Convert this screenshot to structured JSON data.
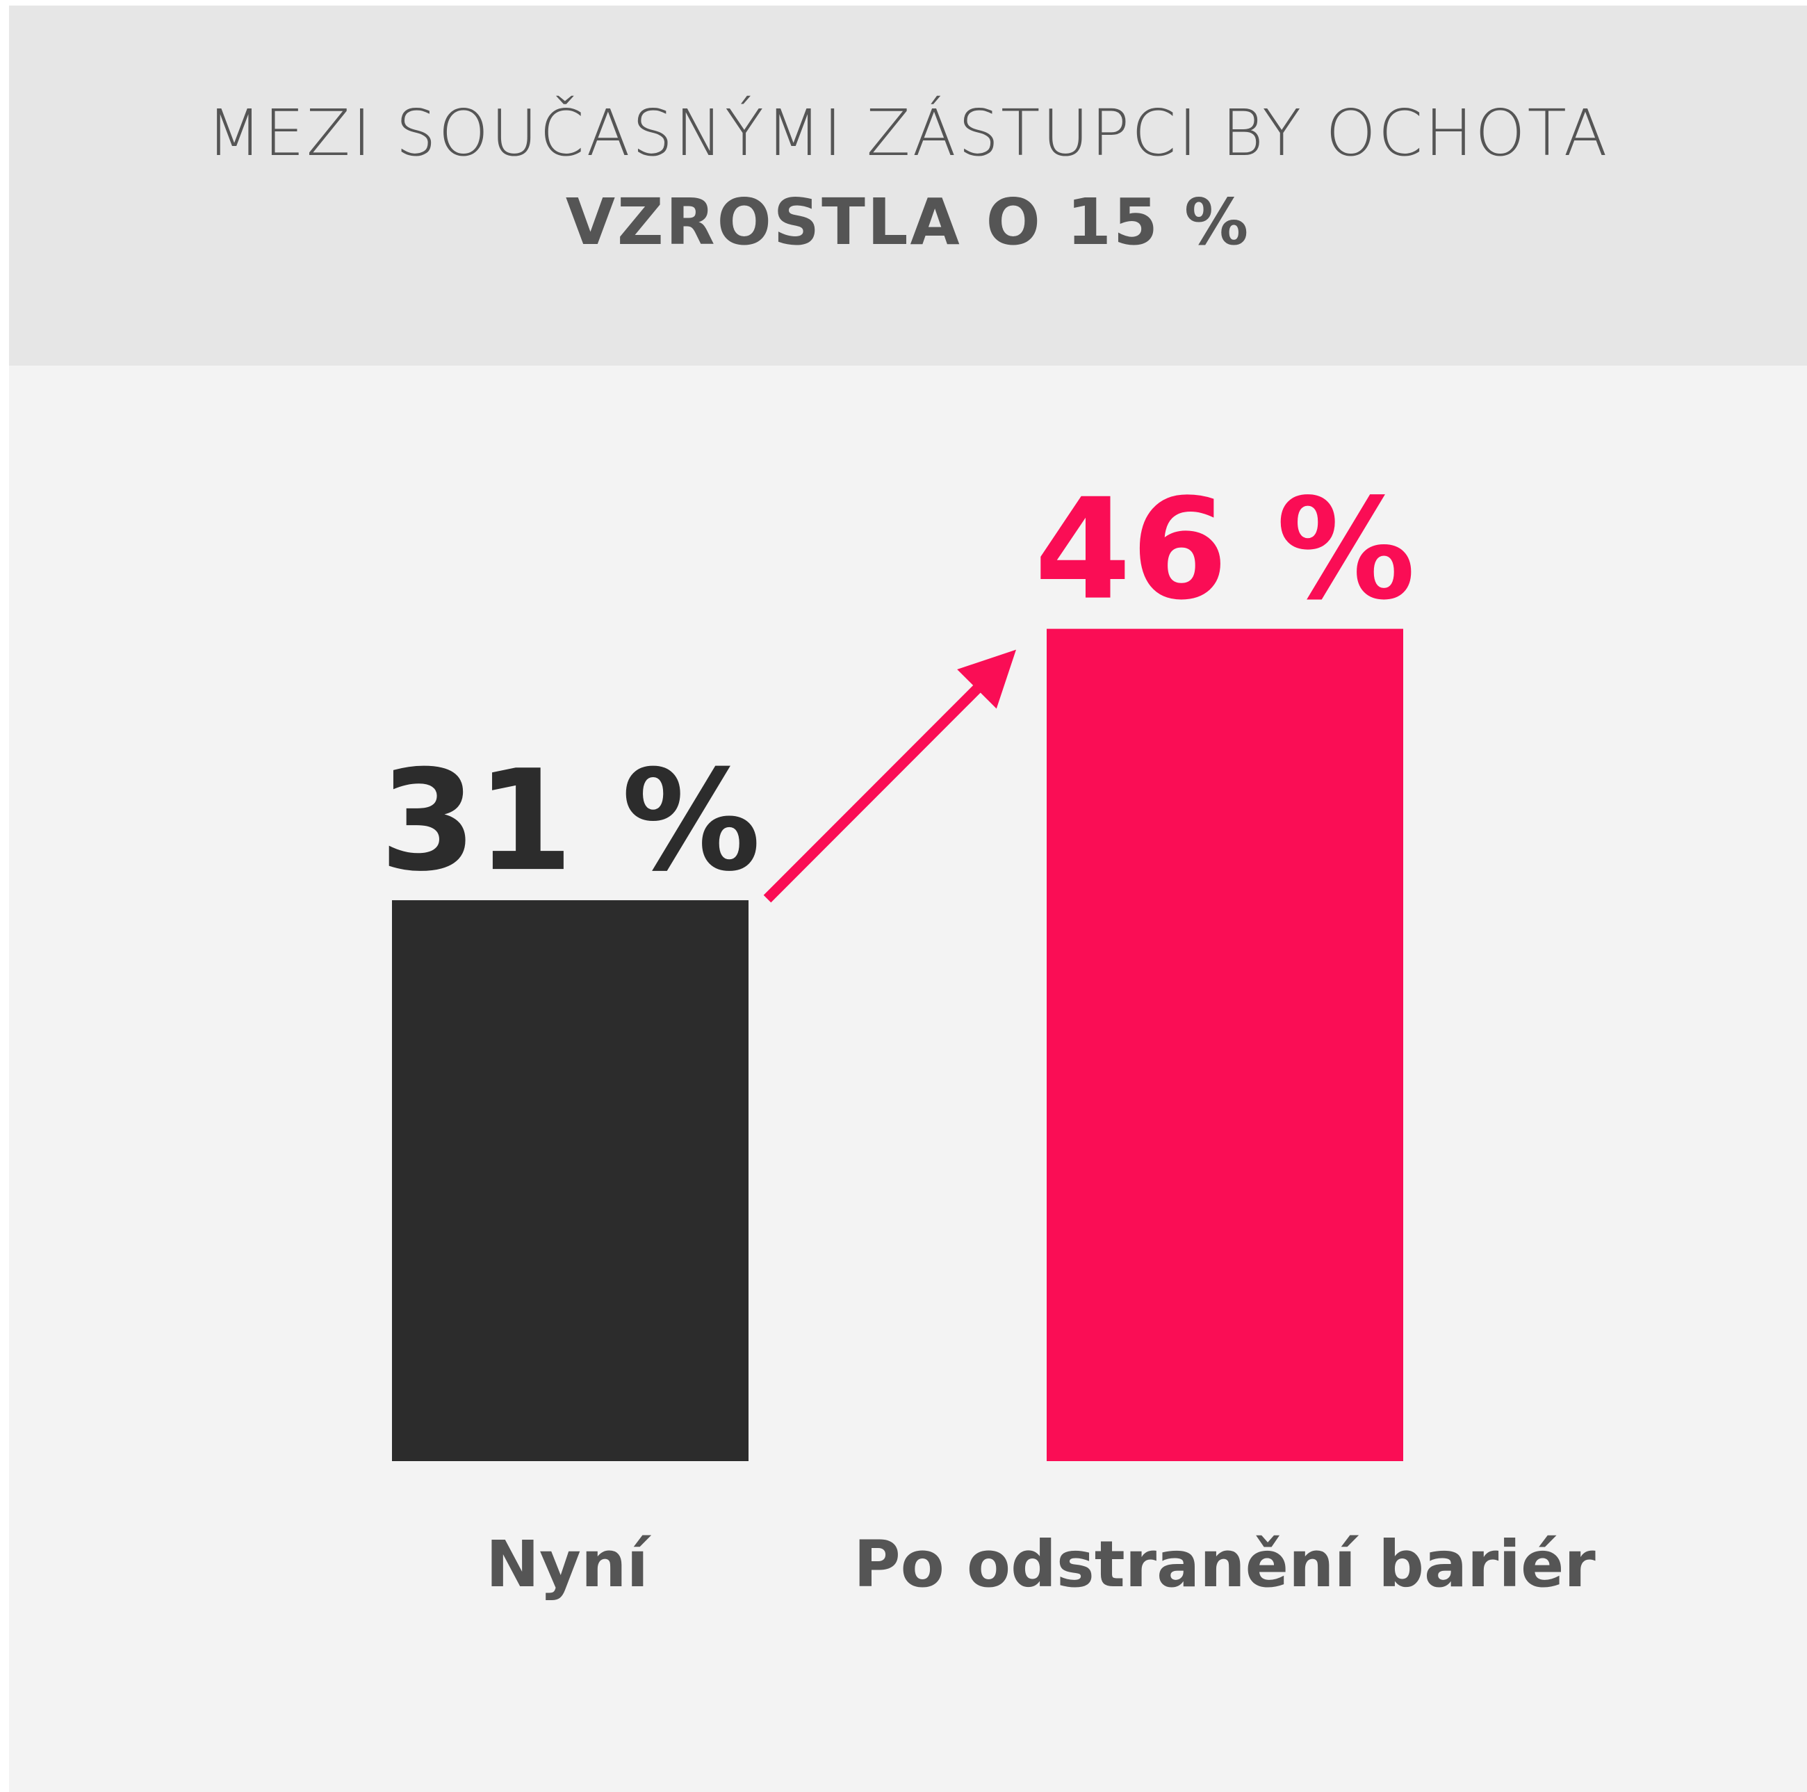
{
  "header": {
    "title_line1": "MEZI SOUČASNÝMI ZÁSTUPCI BY OCHOTA",
    "title_line2": "VZROSTLA O 15 %"
  },
  "colors": {
    "title_band": "#e6e6e6",
    "background": "#f3f3f3",
    "bar_current": "#2c2c2c",
    "bar_after": "#fa0d55",
    "text": "#555555",
    "arrow": "#fa0d55"
  },
  "chart_data": {
    "type": "bar",
    "title": "MEZI SOUČASNÝMI ZÁSTUPCI BY OCHOTA VZROSTLA O 15 %",
    "categories": [
      "Nyní",
      "Po odstranění bariér"
    ],
    "values": [
      31,
      46
    ],
    "value_labels": [
      "31 %",
      "46 %"
    ],
    "unit": "%",
    "bar_colors": [
      "#2c2c2c",
      "#fa0d55"
    ],
    "xlabel": "",
    "ylabel": "",
    "grid": false,
    "legend": "none",
    "annotation": "arrow from Nyní bar to Po odstranění bariér bar"
  }
}
